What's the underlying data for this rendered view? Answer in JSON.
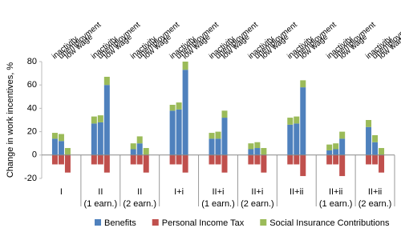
{
  "chart_data": {
    "type": "stacked_bar",
    "y_label": "Change in work incentives, %",
    "categories": [
      [
        "I"
      ],
      [
        "II",
        "(1 earn.)"
      ],
      [
        "II",
        "(2 earn.)"
      ],
      [
        "I+i"
      ],
      [
        "II+i",
        "(1 earn.)"
      ],
      [
        "II+i",
        "(2 earn.)"
      ],
      [
        "II+ii"
      ],
      [
        "II+ii",
        "(1 earn.)"
      ],
      [
        "II+ii",
        "(2 earn.)"
      ]
    ],
    "subcategories": [
      "inactivity",
      "unemployment",
      "low wage"
    ],
    "series": [
      {
        "name": "Benefits",
        "color": "#4f81bd",
        "values": [
          [
            14,
            12,
            0
          ],
          [
            27,
            28,
            60
          ],
          [
            5,
            10,
            0
          ],
          [
            38,
            39,
            73
          ],
          [
            14,
            14,
            32
          ],
          [
            5,
            6,
            0
          ],
          [
            26,
            27,
            58
          ],
          [
            4,
            5,
            14
          ],
          [
            24,
            11,
            0
          ]
        ]
      },
      {
        "name": "Personal Income Tax",
        "color": "#c0504d",
        "values": [
          [
            -8,
            -8,
            -15
          ],
          [
            -8,
            -8,
            -15
          ],
          [
            -8,
            -8,
            -15
          ],
          [
            -8,
            -8,
            -15
          ],
          [
            -8,
            -8,
            -15
          ],
          [
            -8,
            -8,
            -15
          ],
          [
            -8,
            -8,
            -18
          ],
          [
            -8,
            -8,
            -18
          ],
          [
            -8,
            -8,
            -15
          ]
        ]
      },
      {
        "name": "Social Insurance Contributions",
        "color": "#9bbb59",
        "values": [
          [
            5,
            6,
            6
          ],
          [
            6,
            6,
            7
          ],
          [
            5,
            6,
            6
          ],
          [
            5,
            6,
            7
          ],
          [
            5,
            6,
            6
          ],
          [
            5,
            5,
            6
          ],
          [
            6,
            6,
            6
          ],
          [
            5,
            5,
            6
          ],
          [
            6,
            6,
            6
          ]
        ]
      }
    ],
    "ylim": [
      -20,
      80
    ],
    "yticks": [
      -20,
      0,
      20,
      40,
      60,
      80
    ],
    "grid": false
  }
}
